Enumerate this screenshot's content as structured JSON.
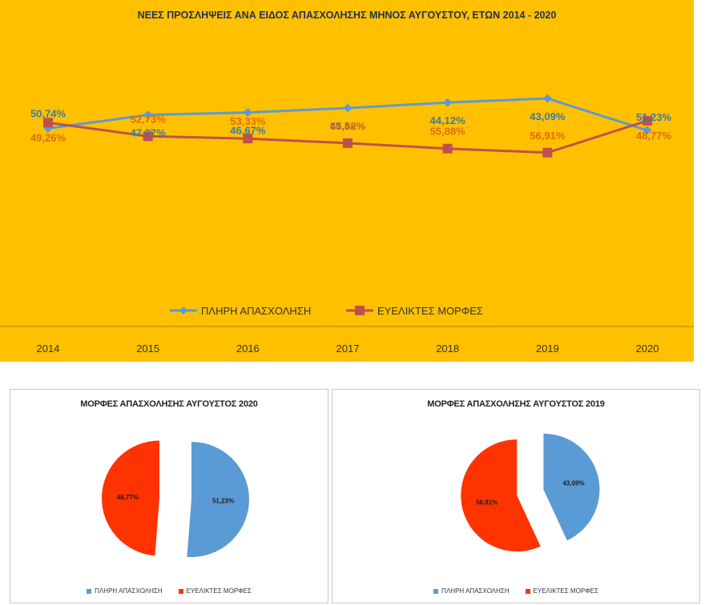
{
  "chart_data": [
    {
      "type": "line",
      "title": "ΝΕΕΣ ΠΡΟΣΛΗΨΕΙΣ ΑΝΑ ΕΙΔΟΣ ΑΠΑΣΧΟΛΗΣΗΣ ΜΗΝΟΣ ΑΥΓΟΥΣΤΟΥ, ΕΤΩΝ 2014 - 2020",
      "categories": [
        "2014",
        "2015",
        "2016",
        "2017",
        "2018",
        "2019",
        "2020"
      ],
      "series": [
        {
          "name": "ΠΛΗΡΗ ΑΠΑΣΧΟΛΗΣΗ",
          "color": "#5B9BD5",
          "marker": "diamond",
          "values": [
            50.74,
            47.27,
            46.67,
            45.52,
            44.12,
            43.09,
            51.23
          ],
          "labels": [
            "50,74%",
            "47,27%",
            "46,67%",
            "45,52%",
            "44,12%",
            "43,09%",
            "51,23%"
          ]
        },
        {
          "name": "ΕΥΕΛΙΚΤΕΣ ΜΟΡΦΕΣ",
          "color": "#C0504D",
          "marker": "square",
          "values": [
            49.26,
            52.73,
            53.33,
            54.48,
            55.88,
            56.91,
            48.77
          ],
          "labels": [
            "49,26%",
            "52,73%",
            "53,33%",
            "54,48%",
            "55,88%",
            "56,91%",
            "48,77%"
          ]
        }
      ],
      "legend_position": "bottom",
      "grid": false
    },
    {
      "type": "pie",
      "title": "ΜΟΡΦΕΣ ΑΠΑΣΧΟΛΗΣΗΣ ΑΥΓΟΥΣΤΟΣ 2020",
      "slices": [
        {
          "name": "ΠΛΗΡΗ ΑΠΑΣΧΟΛΗΣΗ",
          "value": 51.23,
          "label": "51,23%",
          "color": "#5B9BD5"
        },
        {
          "name": "ΕΥΕΛΙΚΤΕΣ  ΜΟΡΦΕΣ",
          "value": 48.77,
          "label": "48,77%",
          "color": "#FF3300"
        }
      ],
      "legend_position": "bottom"
    },
    {
      "type": "pie",
      "title": "ΜΟΡΦΕΣ ΑΠΑΣΧΟΛΗΣΗΣ ΑΥΓΟΥΣΤΟΣ 2019",
      "slices": [
        {
          "name": "ΠΛΗΡΗ ΑΠΑΣΧΟΛΗΣΗ",
          "value": 43.09,
          "label": "43,09%",
          "color": "#5B9BD5"
        },
        {
          "name": "ΕΥΕΛΙΚΤΕΣ  ΜΟΡΦΕΣ",
          "value": 56.91,
          "label": "56,91%",
          "color": "#FF3300"
        }
      ],
      "legend_position": "bottom"
    }
  ],
  "colors": {
    "panel_background": "#FFC000",
    "axis_line": "#B8860B"
  }
}
